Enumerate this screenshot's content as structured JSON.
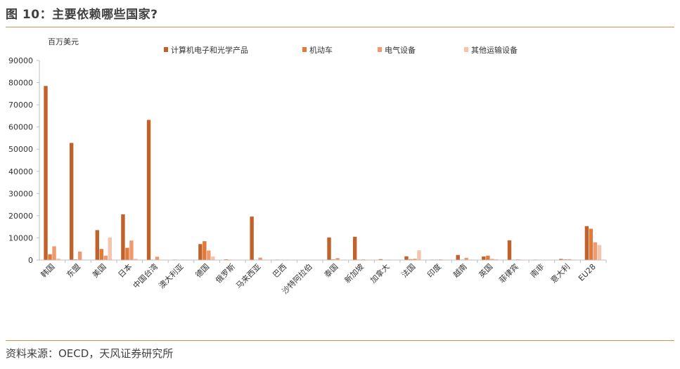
{
  "header": {
    "title": "图 10：主要依赖哪些国家?"
  },
  "footer": {
    "source": "资料来源：OECD，天风证券研究所"
  },
  "chart_data": {
    "type": "bar",
    "unit_label": "百万美元",
    "ylim": [
      0,
      90000
    ],
    "yticks": [
      0,
      10000,
      20000,
      30000,
      40000,
      50000,
      60000,
      70000,
      80000,
      90000
    ],
    "legend_position": "top",
    "grid": false,
    "categories": [
      "韩国",
      "东盟",
      "美国",
      "日本",
      "中国台湾",
      "澳大利亚",
      "德国",
      "俄罗斯",
      "马来西亚",
      "巴西",
      "沙特阿拉伯",
      "泰国",
      "新加坡",
      "加拿大",
      "法国",
      "印度",
      "越南",
      "英国",
      "菲律宾",
      "南非",
      "意大利",
      "EU28"
    ],
    "series": [
      {
        "name": "计算机电子和光学产品",
        "color": "#c0622a",
        "values": [
          78500,
          52800,
          13500,
          20600,
          63200,
          200,
          7200,
          300,
          19600,
          200,
          100,
          10200,
          10500,
          400,
          1700,
          200,
          2300,
          1600,
          8900,
          200,
          500,
          15300
        ]
      },
      {
        "name": "机动车",
        "color": "#e07a3b",
        "values": [
          2600,
          300,
          5000,
          5500,
          200,
          100,
          8500,
          200,
          100,
          100,
          100,
          300,
          200,
          100,
          400,
          200,
          200,
          2000,
          200,
          100,
          300,
          14100
        ]
      },
      {
        "name": "电气设备",
        "color": "#ee9a6e",
        "values": [
          6200,
          3800,
          2000,
          8800,
          1500,
          200,
          4300,
          100,
          1100,
          200,
          100,
          900,
          300,
          200,
          600,
          300,
          1000,
          500,
          300,
          100,
          400,
          8000
        ]
      },
      {
        "name": "其他运输设备",
        "color": "#f6c4ad",
        "values": [
          700,
          200,
          10200,
          600,
          100,
          200,
          1600,
          100,
          200,
          100,
          100,
          100,
          200,
          100,
          4400,
          100,
          200,
          400,
          200,
          100,
          200,
          6800
        ]
      }
    ]
  }
}
